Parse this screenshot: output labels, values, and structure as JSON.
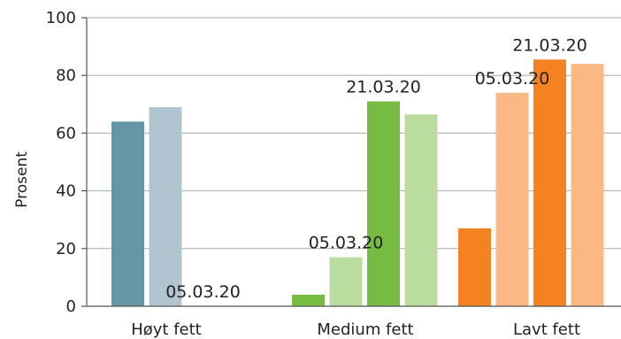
{
  "chart_data": {
    "type": "bar",
    "title": "",
    "xlabel": "",
    "ylabel": "Prosent",
    "ylim": [
      0,
      100
    ],
    "yticks": [
      0,
      20,
      40,
      60,
      80,
      100
    ],
    "grid": true,
    "legend": "none",
    "categories": [
      "Høyt fett",
      "Medium fett",
      "Lavt fett"
    ],
    "groups": [
      {
        "category": "Høyt fett",
        "bars": [
          {
            "value": 64,
            "color": "#6497a6",
            "label": ""
          },
          {
            "value": 69,
            "color": "#b0c5d0",
            "label": ""
          },
          {
            "value": 0,
            "color": "#6497a6",
            "label": "05.03.20"
          },
          {
            "value": 0,
            "color": "#b0c5d0",
            "label": ""
          }
        ]
      },
      {
        "category": "Medium fett",
        "bars": [
          {
            "value": 4,
            "color": "#76bc43",
            "label": ""
          },
          {
            "value": 17,
            "color": "#bbdc9f",
            "label": "05.03.20"
          },
          {
            "value": 71,
            "color": "#76bc43",
            "label": "21.03.20"
          },
          {
            "value": 66.5,
            "color": "#bbdc9f",
            "label": ""
          }
        ]
      },
      {
        "category": "Lavt fett",
        "bars": [
          {
            "value": 27,
            "color": "#f58220",
            "label": ""
          },
          {
            "value": 74,
            "color": "#fbb885",
            "label": "05.03.20"
          },
          {
            "value": 85.5,
            "color": "#f58220",
            "label": "21.03.20"
          },
          {
            "value": 84,
            "color": "#fbb885",
            "label": ""
          }
        ]
      }
    ]
  }
}
